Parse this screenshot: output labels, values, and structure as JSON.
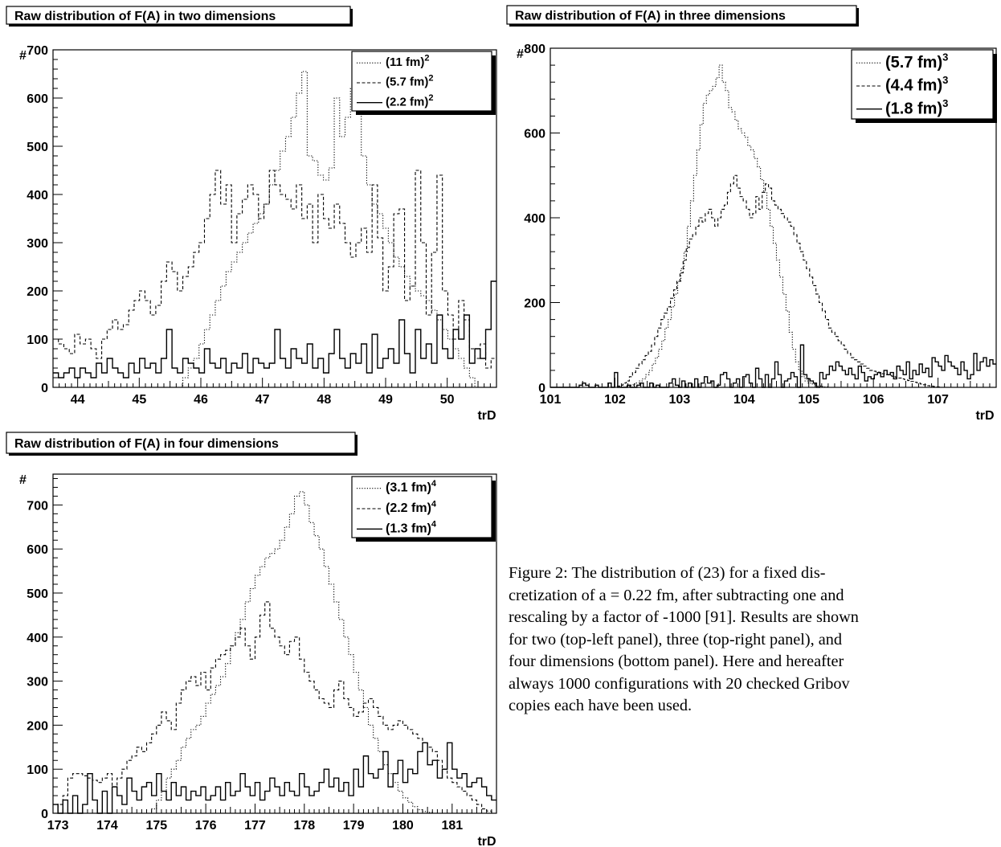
{
  "chart_data": [
    {
      "type": "histogram",
      "title": "Raw distribution of F(A) in two dimensions",
      "xlabel": "trD",
      "ylabel": "#",
      "xlim": [
        43.6,
        50.8
      ],
      "ylim": [
        0,
        700
      ],
      "xticks": [
        44,
        45,
        46,
        47,
        48,
        49,
        50
      ],
      "yticks": [
        0,
        100,
        200,
        300,
        400,
        500,
        600,
        700
      ],
      "legend_position": "top-right",
      "series": [
        {
          "label": "(11 fm)",
          "exp": "2",
          "style": "dotted",
          "values": [
            0,
            0,
            0,
            0,
            0,
            0,
            0,
            0,
            0,
            0,
            0,
            0,
            0,
            0,
            0,
            0,
            0,
            0,
            0,
            0,
            0,
            0,
            0,
            0,
            20,
            40,
            60,
            90,
            120,
            150,
            180,
            210,
            240,
            260,
            280,
            300,
            320,
            340,
            360,
            380,
            420,
            450,
            490,
            520,
            560,
            610,
            655,
            480,
            470,
            440,
            430,
            455,
            600,
            520,
            560,
            620,
            670,
            480,
            420,
            380,
            360,
            330,
            300,
            270,
            250,
            230,
            210,
            200,
            190,
            180,
            160,
            140,
            120,
            100,
            80,
            60,
            40,
            20,
            0,
            0,
            0,
            0
          ]
        },
        {
          "label": "(5.7 fm)",
          "exp": "2",
          "style": "dashed",
          "values": [
            100,
            90,
            80,
            70,
            110,
            90,
            100,
            80,
            60,
            100,
            120,
            140,
            120,
            130,
            160,
            180,
            200,
            180,
            150,
            170,
            220,
            260,
            240,
            200,
            230,
            250,
            280,
            300,
            350,
            400,
            450,
            380,
            420,
            300,
            360,
            390,
            420,
            400,
            350,
            380,
            450,
            420,
            400,
            390,
            370,
            420,
            350,
            380,
            300,
            400,
            350,
            330,
            380,
            340,
            300,
            270,
            300,
            330,
            280,
            420,
            310,
            200,
            250,
            360,
            370,
            180,
            210,
            450,
            300,
            150,
            280,
            440,
            200,
            150,
            100,
            180,
            140,
            80,
            60,
            90,
            40,
            60
          ]
        },
        {
          "label": "(2.2 fm)",
          "exp": "2",
          "style": "solid",
          "values": [
            30,
            20,
            30,
            40,
            20,
            40,
            30,
            20,
            50,
            30,
            60,
            40,
            30,
            20,
            50,
            30,
            60,
            40,
            50,
            30,
            60,
            120,
            40,
            30,
            60,
            50,
            40,
            30,
            80,
            50,
            40,
            60,
            30,
            50,
            40,
            70,
            30,
            60,
            50,
            40,
            50,
            120,
            60,
            40,
            80,
            60,
            50,
            90,
            40,
            60,
            30,
            70,
            120,
            60,
            40,
            70,
            50,
            90,
            30,
            110,
            40,
            60,
            80,
            50,
            140,
            70,
            30,
            120,
            60,
            90,
            50,
            150,
            80,
            60,
            120,
            100,
            150,
            50,
            80,
            60,
            120,
            220
          ]
        }
      ]
    },
    {
      "type": "histogram",
      "title": "Raw distribution of F(A) in three dimensions",
      "xlabel": "trD",
      "ylabel": "#",
      "xlim": [
        101,
        107.9
      ],
      "ylim": [
        0,
        800
      ],
      "xticks": [
        101,
        102,
        103,
        104,
        105,
        106,
        107
      ],
      "yticks": [
        0,
        200,
        400,
        600,
        800
      ],
      "legend_position": "top-right",
      "series": [
        {
          "label": "(5.7 fm)",
          "exp": "3",
          "style": "dotted",
          "values": [
            0,
            0,
            0,
            0,
            0,
            0,
            0,
            0,
            0,
            0,
            0,
            0,
            0,
            0,
            0,
            0,
            0,
            0,
            0,
            0,
            0,
            0,
            0,
            0,
            2,
            5,
            8,
            10,
            15,
            20,
            30,
            40,
            55,
            70,
            90,
            110,
            140,
            160,
            190,
            220,
            250,
            280,
            320,
            380,
            440,
            500,
            560,
            620,
            670,
            690,
            700,
            710,
            730,
            760,
            720,
            700,
            660,
            650,
            630,
            610,
            600,
            590,
            570,
            560,
            540,
            520,
            490,
            460,
            420,
            380,
            340,
            300,
            260,
            220,
            180,
            130,
            90,
            60,
            40,
            25,
            15,
            10,
            8,
            5,
            3,
            2,
            1,
            0,
            0,
            0,
            0,
            0,
            0,
            0,
            0,
            0,
            0,
            0,
            0,
            0,
            0,
            0,
            0,
            0,
            0,
            0,
            0,
            0,
            0,
            0,
            0,
            0,
            0,
            0,
            0,
            0,
            0,
            0,
            0,
            0,
            0,
            0,
            0,
            0,
            0,
            0,
            0,
            0,
            0,
            0,
            0,
            0,
            0,
            0,
            0,
            0,
            0,
            0,
            0,
            0
          ]
        },
        {
          "label": "(4.4 fm)",
          "exp": "3",
          "style": "dashed",
          "values": [
            0,
            0,
            0,
            0,
            0,
            0,
            0,
            0,
            0,
            0,
            0,
            0,
            0,
            0,
            0,
            0,
            0,
            0,
            0,
            0,
            0,
            3,
            5,
            10,
            15,
            25,
            35,
            45,
            55,
            65,
            75,
            85,
            100,
            120,
            140,
            160,
            175,
            190,
            210,
            230,
            250,
            270,
            300,
            330,
            350,
            360,
            380,
            400,
            390,
            410,
            420,
            400,
            380,
            400,
            420,
            430,
            460,
            480,
            500,
            470,
            450,
            440,
            420,
            400,
            410,
            450,
            420,
            460,
            480,
            470,
            440,
            430,
            420,
            410,
            400,
            390,
            380,
            360,
            340,
            320,
            300,
            280,
            260,
            240,
            220,
            200,
            180,
            160,
            140,
            130,
            120,
            110,
            100,
            90,
            80,
            70,
            65,
            60,
            55,
            50,
            45,
            40,
            38,
            36,
            34,
            32,
            30,
            28,
            26,
            24,
            22,
            20,
            18,
            16,
            14,
            12,
            10,
            8,
            6,
            4,
            3,
            2,
            1,
            0,
            0,
            0,
            0,
            0,
            0,
            0,
            0,
            0,
            0,
            0,
            0,
            0,
            0,
            0,
            0,
            0,
            0
          ]
        },
        {
          "label": "(1.8 fm)",
          "exp": "3",
          "style": "solid",
          "values": [
            0,
            0,
            0,
            0,
            0,
            0,
            0,
            0,
            0,
            5,
            10,
            5,
            0,
            0,
            5,
            0,
            0,
            0,
            10,
            0,
            35,
            0,
            0,
            0,
            5,
            0,
            0,
            5,
            10,
            0,
            0,
            10,
            0,
            5,
            0,
            0,
            0,
            10,
            20,
            5,
            0,
            15,
            0,
            10,
            0,
            20,
            0,
            10,
            25,
            10,
            15,
            0,
            5,
            30,
            35,
            20,
            0,
            10,
            20,
            0,
            25,
            30,
            10,
            0,
            45,
            20,
            0,
            30,
            0,
            20,
            60,
            30,
            0,
            15,
            20,
            35,
            25,
            0,
            100,
            30,
            20,
            15,
            10,
            0,
            35,
            20,
            30,
            50,
            40,
            60,
            50,
            40,
            30,
            45,
            30,
            20,
            50,
            35,
            15,
            25,
            20,
            30,
            35,
            25,
            40,
            30,
            35,
            20,
            50,
            40,
            30,
            60,
            20,
            40,
            30,
            55,
            35,
            45,
            25,
            70,
            60,
            50,
            40,
            75,
            60,
            50,
            45,
            30,
            60,
            40,
            20,
            30,
            80,
            40,
            60,
            70,
            50,
            65,
            55
          ]
        }
      ]
    },
    {
      "type": "histogram",
      "title": "Raw distribution of F(A) in four dimensions",
      "xlabel": "trD",
      "ylabel": "#",
      "xlim": [
        172.9,
        181.9
      ],
      "ylim": [
        0,
        770
      ],
      "xticks": [
        173,
        174,
        175,
        176,
        177,
        178,
        179,
        180,
        181
      ],
      "yticks": [
        0,
        100,
        200,
        300,
        400,
        500,
        600,
        700
      ],
      "legend_position": "top-right",
      "series": [
        {
          "label": "(3.1 fm)",
          "exp": "4",
          "style": "dotted",
          "values": [
            0,
            0,
            0,
            0,
            0,
            0,
            0,
            0,
            0,
            0,
            0,
            0,
            0,
            0,
            0,
            0,
            0,
            0,
            0,
            0,
            10,
            30,
            50,
            80,
            100,
            120,
            150,
            170,
            190,
            200,
            220,
            250,
            270,
            290,
            310,
            340,
            380,
            410,
            440,
            480,
            510,
            540,
            560,
            580,
            590,
            600,
            620,
            650,
            680,
            720,
            730,
            700,
            660,
            630,
            600,
            560,
            520,
            480,
            440,
            400,
            360,
            320,
            280,
            240,
            200,
            170,
            140,
            110,
            90,
            70,
            50,
            35,
            25,
            15,
            8,
            4,
            2,
            0,
            0,
            0,
            0,
            0,
            0,
            0,
            0,
            0,
            0,
            0,
            0,
            0
          ]
        },
        {
          "label": "(2.2 fm)",
          "exp": "4",
          "style": "dashed",
          "values": [
            0,
            20,
            40,
            80,
            90,
            90,
            85,
            80,
            75,
            70,
            80,
            90,
            60,
            80,
            100,
            120,
            130,
            150,
            140,
            160,
            180,
            200,
            230,
            210,
            190,
            250,
            280,
            300,
            310,
            290,
            320,
            280,
            330,
            350,
            360,
            370,
            380,
            400,
            420,
            380,
            350,
            400,
            450,
            480,
            420,
            400,
            380,
            360,
            390,
            400,
            350,
            320,
            300,
            280,
            260,
            250,
            240,
            280,
            300,
            260,
            240,
            220,
            230,
            250,
            260,
            240,
            220,
            200,
            190,
            200,
            210,
            200,
            190,
            180,
            170,
            160,
            150,
            140,
            120,
            100,
            80,
            70,
            60,
            50,
            40,
            30,
            20,
            10,
            5,
            0
          ]
        },
        {
          "label": "(1.3 fm)",
          "exp": "4",
          "style": "solid",
          "values": [
            20,
            0,
            30,
            0,
            40,
            0,
            20,
            90,
            30,
            0,
            50,
            0,
            60,
            40,
            20,
            80,
            50,
            30,
            60,
            70,
            40,
            90,
            50,
            30,
            70,
            40,
            60,
            30,
            50,
            40,
            60,
            30,
            40,
            60,
            30,
            70,
            40,
            50,
            90,
            60,
            40,
            70,
            30,
            50,
            80,
            60,
            40,
            70,
            50,
            40,
            90,
            60,
            40,
            50,
            70,
            100,
            60,
            80,
            50,
            70,
            40,
            100,
            60,
            130,
            90,
            80,
            100,
            140,
            60,
            90,
            120,
            70,
            100,
            90,
            140,
            160,
            110,
            120,
            80,
            100,
            160,
            100,
            80,
            90,
            60,
            70,
            80,
            60,
            40,
            30
          ]
        }
      ]
    }
  ],
  "caption": {
    "lines": [
      "Figure 2:  The distribution of (23) for a fixed dis-",
      "cretization of a = 0.22 fm, after subtracting one and",
      "rescaling by a factor of -1000 [91]. Results are shown",
      "for two (top-left panel), three (top-right panel), and",
      "four dimensions (bottom panel).  Here and hereafter",
      "always 1000 configurations with 20 checked Gribov",
      "copies each have been used."
    ]
  }
}
